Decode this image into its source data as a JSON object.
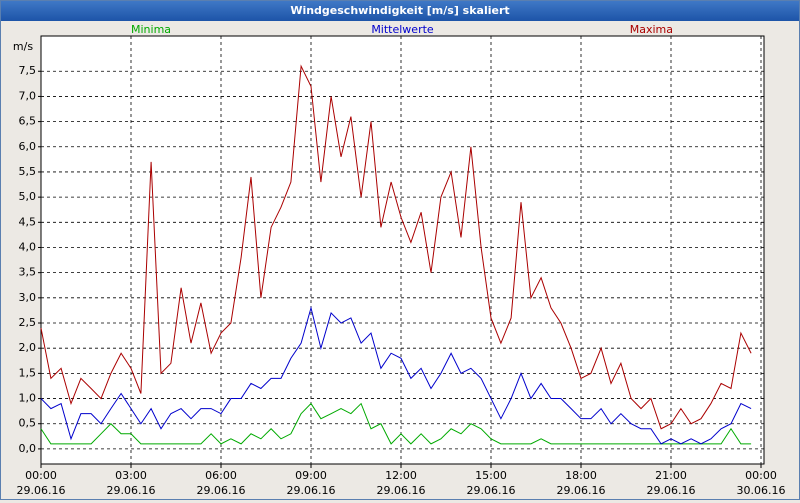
{
  "chart_data": {
    "type": "line",
    "title": "Windgeschwindigkeit [m/s] skaliert",
    "y_label": "m/s",
    "x": [
      0,
      0.33,
      0.67,
      1,
      1.33,
      1.67,
      2,
      2.33,
      2.67,
      3,
      3.33,
      3.67,
      4,
      4.33,
      4.67,
      5,
      5.33,
      5.67,
      6,
      6.33,
      6.67,
      7,
      7.33,
      7.67,
      8,
      8.33,
      8.67,
      9,
      9.33,
      9.67,
      10,
      10.33,
      10.67,
      11,
      11.33,
      11.67,
      12,
      12.33,
      12.67,
      13,
      13.33,
      13.67,
      14,
      14.33,
      14.67,
      15,
      15.33,
      15.67,
      16,
      16.33,
      16.67,
      17,
      17.33,
      17.67,
      18,
      18.33,
      18.67,
      19,
      19.33,
      19.67,
      20,
      20.33,
      20.67,
      21,
      21.33,
      21.67,
      22,
      22.33,
      22.67,
      23,
      23.33,
      23.67
    ],
    "series": [
      {
        "name": "Minima",
        "color": "#00aa00",
        "values": [
          0.4,
          0.1,
          0.1,
          0.1,
          0.1,
          0.1,
          0.3,
          0.5,
          0.3,
          0.3,
          0.1,
          0.1,
          0.1,
          0.1,
          0.1,
          0.1,
          0.1,
          0.3,
          0.1,
          0.2,
          0.1,
          0.3,
          0.2,
          0.4,
          0.2,
          0.3,
          0.7,
          0.9,
          0.6,
          0.7,
          0.8,
          0.7,
          0.9,
          0.4,
          0.5,
          0.1,
          0.3,
          0.1,
          0.3,
          0.1,
          0.2,
          0.4,
          0.3,
          0.5,
          0.4,
          0.2,
          0.1,
          0.1,
          0.1,
          0.1,
          0.2,
          0.1,
          0.1,
          0.1,
          0.1,
          0.1,
          0.1,
          0.1,
          0.1,
          0.1,
          0.1,
          0.1,
          0.1,
          0.1,
          0.1,
          0.1,
          0.1,
          0.1,
          0.1,
          0.4,
          0.1,
          0.1
        ]
      },
      {
        "name": "Mittelwerte",
        "color": "#0000cc",
        "values": [
          1.0,
          0.8,
          0.9,
          0.2,
          0.7,
          0.7,
          0.5,
          0.8,
          1.1,
          0.8,
          0.5,
          0.8,
          0.4,
          0.7,
          0.8,
          0.6,
          0.8,
          0.8,
          0.7,
          1.0,
          1.0,
          1.3,
          1.2,
          1.4,
          1.4,
          1.8,
          2.1,
          2.8,
          2.0,
          2.7,
          2.5,
          2.6,
          2.1,
          2.3,
          1.6,
          1.9,
          1.8,
          1.4,
          1.6,
          1.2,
          1.5,
          1.9,
          1.5,
          1.6,
          1.4,
          1.0,
          0.6,
          1.0,
          1.5,
          1.0,
          1.3,
          1.0,
          1.0,
          0.8,
          0.6,
          0.6,
          0.8,
          0.5,
          0.7,
          0.5,
          0.4,
          0.4,
          0.1,
          0.2,
          0.1,
          0.2,
          0.1,
          0.2,
          0.4,
          0.5,
          0.9,
          0.8
        ]
      },
      {
        "name": "Maxima",
        "color": "#aa0000",
        "values": [
          2.4,
          1.4,
          1.6,
          0.9,
          1.4,
          1.2,
          1.0,
          1.5,
          1.9,
          1.6,
          1.1,
          5.7,
          1.5,
          1.7,
          3.2,
          2.1,
          2.9,
          1.9,
          2.3,
          2.5,
          3.8,
          5.4,
          3.0,
          4.4,
          4.8,
          5.3,
          7.6,
          7.2,
          5.3,
          7.0,
          5.8,
          6.6,
          5.0,
          6.5,
          4.4,
          5.3,
          4.6,
          4.1,
          4.7,
          3.5,
          5.0,
          5.5,
          4.2,
          6.0,
          4.0,
          2.6,
          2.1,
          2.6,
          4.9,
          3.0,
          3.4,
          2.8,
          2.5,
          2.0,
          1.4,
          1.5,
          2.0,
          1.3,
          1.7,
          1.0,
          0.8,
          1.0,
          0.4,
          0.5,
          0.8,
          0.5,
          0.6,
          0.9,
          1.3,
          1.2,
          2.3,
          1.9
        ]
      }
    ],
    "xlim": [
      0,
      24.1
    ],
    "xticks": [
      {
        "value": 0,
        "label": "00:00",
        "date": "29.06.16"
      },
      {
        "value": 3,
        "label": "03:00",
        "date": "29.06.16"
      },
      {
        "value": 6,
        "label": "06:00",
        "date": "29.06.16"
      },
      {
        "value": 9,
        "label": "09:00",
        "date": "29.06.16"
      },
      {
        "value": 12,
        "label": "12:00",
        "date": "29.06.16"
      },
      {
        "value": 15,
        "label": "15:00",
        "date": "29.06.16"
      },
      {
        "value": 18,
        "label": "18:00",
        "date": "29.06.16"
      },
      {
        "value": 21,
        "label": "21:00",
        "date": "29.06.16"
      },
      {
        "value": 24,
        "label": "00:00",
        "date": "30.06.16"
      }
    ],
    "ylim": [
      -0.3,
      8.2
    ],
    "yticks": [
      {
        "value": 0,
        "label": "0,0"
      },
      {
        "value": 0.5,
        "label": "0,5"
      },
      {
        "value": 1,
        "label": "1,0"
      },
      {
        "value": 1.5,
        "label": "1,5"
      },
      {
        "value": 2,
        "label": "2,0"
      },
      {
        "value": 2.5,
        "label": "2,5"
      },
      {
        "value": 3,
        "label": "3,0"
      },
      {
        "value": 3.5,
        "label": "3,5"
      },
      {
        "value": 4,
        "label": "4,0"
      },
      {
        "value": 4.5,
        "label": "4,5"
      },
      {
        "value": 5,
        "label": "5,0"
      },
      {
        "value": 5.5,
        "label": "5,5"
      },
      {
        "value": 6,
        "label": "6,0"
      },
      {
        "value": 6.5,
        "label": "6,5"
      },
      {
        "value": 7,
        "label": "7,0"
      },
      {
        "value": 7.5,
        "label": "7,5"
      }
    ],
    "grid": true
  }
}
